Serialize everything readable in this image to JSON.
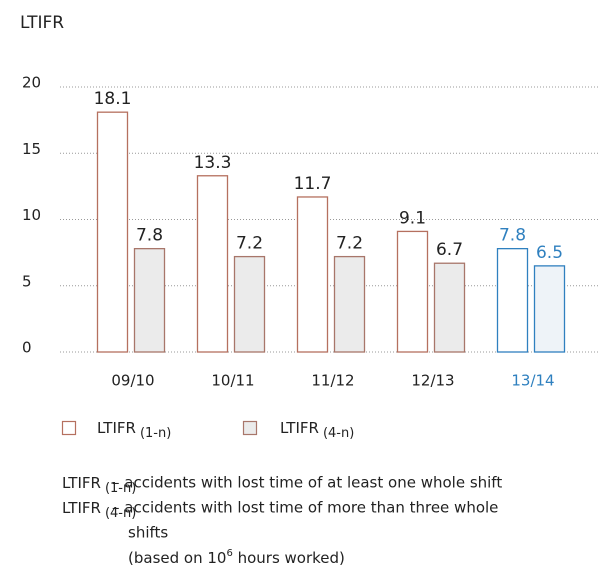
{
  "chart_data": {
    "type": "bar",
    "title": "LTIFR",
    "categories": [
      "09/10",
      "10/11",
      "11/12",
      "12/13",
      "13/14"
    ],
    "series": [
      {
        "name": "LTIFR",
        "name_subscript": "(1-n)",
        "color": "#b5705f",
        "fill": "#ffffff",
        "values": [
          18.1,
          13.3,
          11.7,
          9.1,
          7.8
        ]
      },
      {
        "name": "LTIFR",
        "name_subscript": "(4-n)",
        "color": "#a8766a",
        "fill": "#ebebeb",
        "values": [
          7.8,
          7.2,
          7.2,
          6.7,
          6.5
        ]
      }
    ],
    "highlight_index": 4,
    "highlight_color": "#2f80bf",
    "highlight_fill": "#eef3f8",
    "ylim": [
      0,
      20
    ],
    "yticks": [
      0,
      5,
      10,
      15,
      20
    ],
    "grid": true,
    "footnotes": [
      {
        "term": "LTIFR",
        "subscript": "(1-n)",
        "lines": [
          "– accidents with lost time of at least one whole shift"
        ]
      },
      {
        "term": "LTIFR",
        "subscript": "(4-n)",
        "lines": [
          "– accidents with lost time of more than three whole",
          "shifts"
        ]
      }
    ],
    "note": {
      "before": "(based on 10",
      "superscript": "6",
      "after": " hours worked)"
    }
  }
}
